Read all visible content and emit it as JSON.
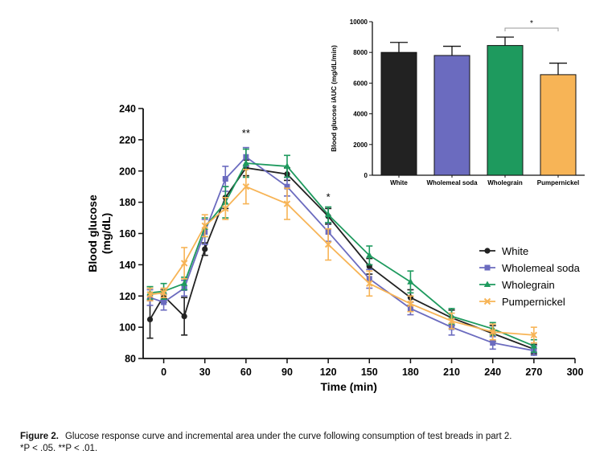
{
  "colors": {
    "white": "#222222",
    "wholemeal_soda": "#6b6bbf",
    "wholegrain": "#1e9a5e",
    "pumpernickel": "#f7b456",
    "axis": "#111111",
    "significance_bracket": "#999999"
  },
  "caption": {
    "label": "Figure 2.",
    "text": "Glucose response curve and incremental area under the curve following consumption of test breads in part 2.",
    "footnote_1": "*P < .05.",
    "footnote_2": "**P < .01."
  },
  "chart_data": [
    {
      "type": "line",
      "ylabel": "Blood glucose (mg/dL)",
      "xlabel": "Time (min)",
      "x": [
        -10,
        0,
        15,
        30,
        45,
        60,
        90,
        120,
        150,
        180,
        210,
        240,
        270
      ],
      "xticks": [
        0,
        30,
        60,
        90,
        120,
        150,
        180,
        210,
        240,
        270,
        300
      ],
      "yticks": [
        80,
        100,
        120,
        140,
        160,
        180,
        200,
        220,
        240
      ],
      "xlim": [
        -15,
        300
      ],
      "ylim": [
        80,
        240
      ],
      "legend_position": "right",
      "grid": false,
      "series": [
        {
          "name": "White",
          "color_key": "white",
          "marker": "circle",
          "values": [
            105,
            120,
            107,
            150,
            183,
            202,
            198,
            171,
            139,
            119,
            106,
            96,
            86
          ],
          "errors": [
            12,
            4,
            12,
            4,
            7,
            5,
            4,
            5,
            5,
            5,
            5,
            5,
            3
          ]
        },
        {
          "name": "Wholemeal soda",
          "color_key": "wholemeal_soda",
          "marker": "square",
          "values": [
            119,
            116,
            125,
            161,
            195,
            209,
            190,
            161,
            131,
            112,
            100,
            90,
            85
          ],
          "errors": [
            5,
            5,
            5,
            8,
            8,
            6,
            6,
            6,
            6,
            4,
            5,
            4,
            3
          ]
        },
        {
          "name": "Wholegrain",
          "color_key": "wholegrain",
          "marker": "triangle",
          "values": [
            122,
            123,
            128,
            164,
            180,
            205,
            203,
            172,
            146,
            129,
            107,
            99,
            88
          ],
          "errors": [
            4,
            5,
            4,
            6,
            10,
            9,
            7,
            5,
            6,
            7,
            5,
            4,
            4
          ]
        },
        {
          "name": "Pumpernickel",
          "color_key": "pumpernickel",
          "marker": "x",
          "values": [
            121,
            122,
            141,
            165,
            176,
            190,
            179,
            153,
            128,
            115,
            104,
            97,
            95
          ],
          "errors": [
            4,
            3,
            10,
            7,
            7,
            11,
            10,
            10,
            8,
            5,
            5,
            5,
            5
          ]
        }
      ],
      "annotations": [
        {
          "text": "**",
          "x": 60,
          "y": 222
        },
        {
          "text": "*",
          "x": 120,
          "y": 181
        }
      ]
    },
    {
      "type": "bar",
      "ylabel": "Blood glucose iAUC (mg/dL/min)",
      "categories": [
        "White",
        "Wholemeal soda",
        "Wholegrain",
        "Pumpernickel"
      ],
      "values": [
        8000,
        7800,
        8450,
        6550
      ],
      "errors": [
        650,
        600,
        550,
        750
      ],
      "color_keys": [
        "white",
        "wholemeal_soda",
        "wholegrain",
        "pumpernickel"
      ],
      "yticks": [
        0,
        2000,
        4000,
        6000,
        8000,
        10000
      ],
      "ylim": [
        0,
        10000
      ],
      "significance": {
        "from": "Wholegrain",
        "to": "Pumpernickel",
        "label": "*"
      }
    }
  ]
}
